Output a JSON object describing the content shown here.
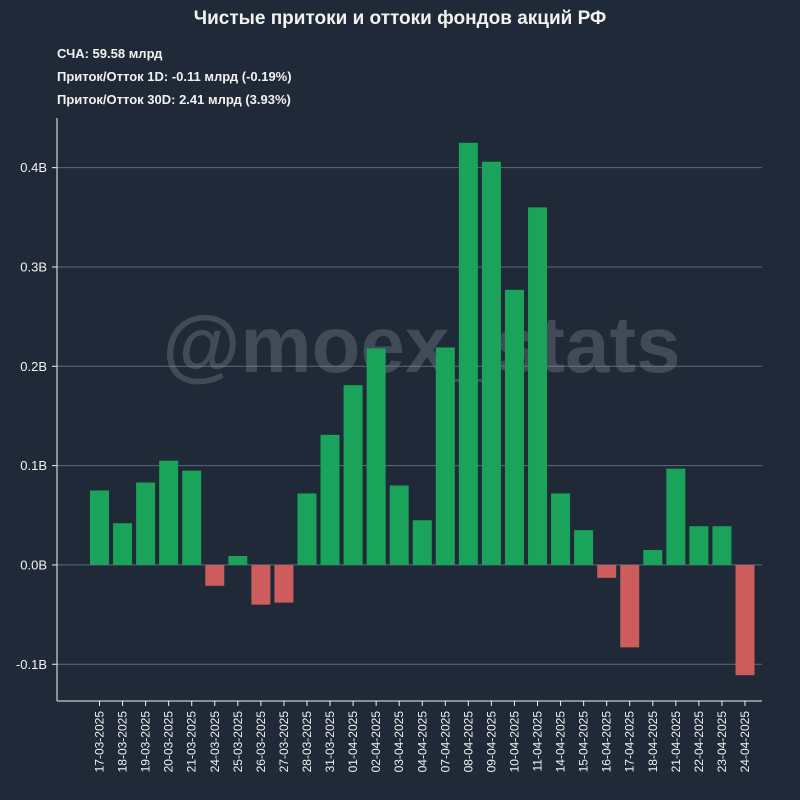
{
  "title": "Чистые притоки и оттоки фондов акций РФ",
  "stats": {
    "aum_label": "СЧА:",
    "aum_value": "59.58 млрд",
    "flow_1d_label": "Приток/Отток 1D:",
    "flow_1d_value": "-0.11 млрд (-0.19%)",
    "flow_30d_label": "Приток/Отток 30D:",
    "flow_30d_value": "2.41 млрд (3.93%)"
  },
  "watermark": "@moex_stats",
  "colors": {
    "background": "#1f2937",
    "positive": "#1aa35a",
    "negative": "#cd5c5c",
    "grid": "#5f6b78",
    "text": "#f2f2f2"
  },
  "chart_data": {
    "type": "bar",
    "title": "Чистые притоки и оттоки фондов акций РФ",
    "xlabel": "",
    "ylabel": "",
    "ylim": [
      -0.137,
      0.45
    ],
    "grid": true,
    "y_ticks": [
      -0.1,
      0.0,
      0.1,
      0.2,
      0.3,
      0.4
    ],
    "y_tick_labels": [
      "-0.1B",
      "0.0B",
      "0.1B",
      "0.2B",
      "0.3B",
      "0.4B"
    ],
    "categories": [
      "17-03-2025",
      "18-03-2025",
      "19-03-2025",
      "20-03-2025",
      "21-03-2025",
      "24-03-2025",
      "25-03-2025",
      "26-03-2025",
      "27-03-2025",
      "28-03-2025",
      "31-03-2025",
      "01-04-2025",
      "02-04-2025",
      "03-04-2025",
      "04-04-2025",
      "07-04-2025",
      "08-04-2025",
      "09-04-2025",
      "10-04-2025",
      "11-04-2025",
      "14-04-2025",
      "15-04-2025",
      "16-04-2025",
      "17-04-2025",
      "18-04-2025",
      "21-04-2025",
      "22-04-2025",
      "23-04-2025",
      "24-04-2025"
    ],
    "values": [
      0.075,
      0.042,
      0.083,
      0.105,
      0.095,
      -0.021,
      0.009,
      -0.04,
      -0.038,
      0.072,
      0.131,
      0.181,
      0.218,
      0.08,
      0.045,
      0.219,
      0.425,
      0.406,
      0.277,
      0.36,
      0.072,
      0.035,
      -0.013,
      -0.083,
      0.015,
      0.097,
      0.039,
      0.039,
      -0.111
    ]
  }
}
